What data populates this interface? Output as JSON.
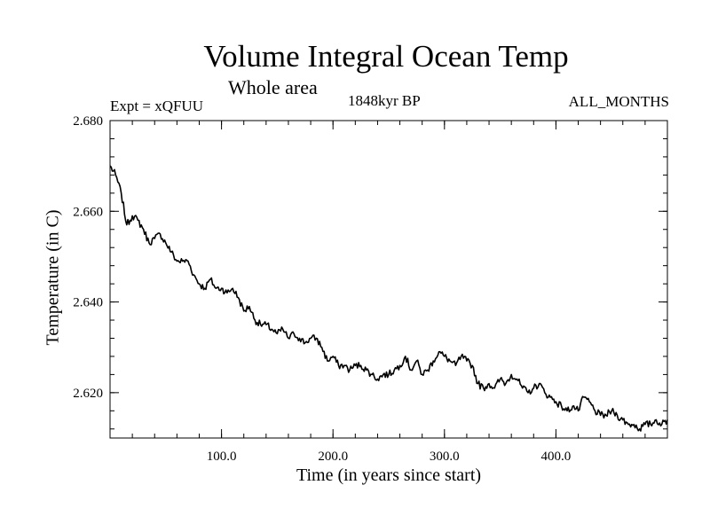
{
  "chart_data": {
    "type": "line",
    "title": "Volume Integral Ocean Temp",
    "subtitle": "Whole area",
    "annotations": {
      "experiment": "Expt = xQFUU",
      "period": "1848kyr BP",
      "months": "ALL_MONTHS"
    },
    "xlabel": "Time (in years since start)",
    "ylabel": "Temperature (in C)",
    "xlim": [
      0,
      500
    ],
    "ylim": [
      2.61,
      2.68
    ],
    "xticks": [
      100,
      200,
      300,
      400
    ],
    "xtick_labels": [
      "100.0",
      "200.0",
      "300.0",
      "400.0"
    ],
    "yticks": [
      2.62,
      2.64,
      2.66,
      2.68
    ],
    "ytick_labels": [
      "2.620",
      "2.640",
      "2.660",
      "2.680"
    ],
    "grid": false,
    "series": [
      {
        "name": "Volume Integral Ocean Temp",
        "color": "#000000",
        "x": [
          0,
          5,
          10,
          15,
          20,
          25,
          30,
          35,
          40,
          45,
          50,
          55,
          60,
          65,
          70,
          75,
          80,
          85,
          90,
          95,
          100,
          105,
          110,
          115,
          120,
          125,
          130,
          135,
          140,
          145,
          150,
          155,
          160,
          165,
          170,
          175,
          180,
          185,
          190,
          195,
          200,
          205,
          210,
          215,
          220,
          225,
          230,
          235,
          240,
          245,
          250,
          255,
          260,
          265,
          270,
          275,
          280,
          285,
          290,
          295,
          300,
          305,
          310,
          315,
          320,
          325,
          330,
          335,
          340,
          345,
          350,
          355,
          360,
          365,
          370,
          375,
          380,
          385,
          390,
          395,
          400,
          405,
          410,
          415,
          420,
          425,
          430,
          435,
          440,
          445,
          450,
          455,
          460,
          465,
          470,
          475,
          480,
          485,
          490,
          495,
          500
        ],
        "values": [
          2.67,
          2.668,
          2.664,
          2.657,
          2.659,
          2.658,
          2.656,
          2.653,
          2.654,
          2.655,
          2.653,
          2.651,
          2.649,
          2.649,
          2.649,
          2.646,
          2.644,
          2.643,
          2.645,
          2.643,
          2.643,
          2.642,
          2.643,
          2.641,
          2.638,
          2.639,
          2.636,
          2.635,
          2.635,
          2.634,
          2.633,
          2.634,
          2.632,
          2.633,
          2.632,
          2.631,
          2.632,
          2.632,
          2.63,
          2.627,
          2.628,
          2.626,
          2.626,
          2.625,
          2.626,
          2.626,
          2.625,
          2.624,
          2.623,
          2.624,
          2.624,
          2.625,
          2.626,
          2.628,
          2.625,
          2.627,
          2.624,
          2.625,
          2.627,
          2.629,
          2.628,
          2.627,
          2.626,
          2.628,
          2.627,
          2.626,
          2.622,
          2.621,
          2.622,
          2.621,
          2.623,
          2.622,
          2.624,
          2.623,
          2.621,
          2.62,
          2.621,
          2.622,
          2.62,
          2.619,
          2.618,
          2.617,
          2.616,
          2.617,
          2.616,
          2.619,
          2.618,
          2.616,
          2.615,
          2.615,
          2.616,
          2.615,
          2.614,
          2.613,
          2.613,
          2.612,
          2.613,
          2.613,
          2.614,
          2.613,
          2.614
        ]
      }
    ]
  }
}
